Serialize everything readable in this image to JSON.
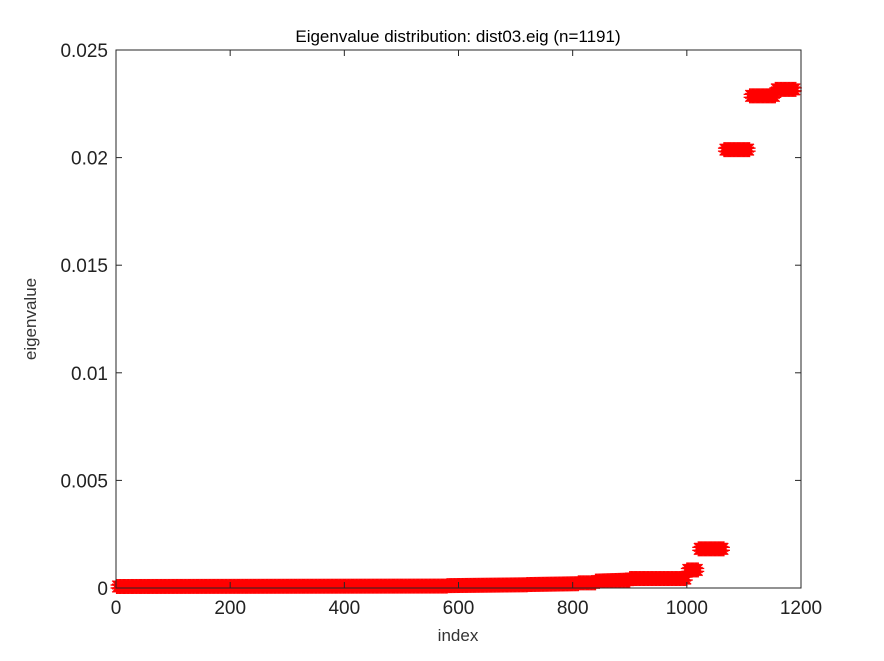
{
  "chart_data": {
    "type": "scatter",
    "title": "Eigenvalue distribution: dist03.eig (n=1191)",
    "xlabel": "index",
    "ylabel": "eigenvalue",
    "xlim": [
      0,
      1200
    ],
    "ylim": [
      0,
      0.025
    ],
    "xticks": [
      0,
      200,
      400,
      600,
      800,
      1000,
      1200
    ],
    "xtick_labels": [
      "0",
      "200",
      "400",
      "600",
      "800",
      "1000",
      "1200"
    ],
    "yticks": [
      0,
      0.005,
      0.01,
      0.015,
      0.02,
      0.025
    ],
    "ytick_labels": [
      "0",
      "0.005",
      "0.01",
      "0.015",
      "0.02",
      "0.025"
    ],
    "grid": false,
    "marker": "star",
    "marker_color": "#ff0000",
    "series": [
      {
        "segments": [
          {
            "x_start": 1,
            "x_end": 580,
            "y_start": 0.0,
            "y_end": 2e-05
          },
          {
            "x_start": 580,
            "x_end": 720,
            "y_start": 4e-05,
            "y_end": 8e-05
          },
          {
            "x_start": 720,
            "x_end": 810,
            "y_start": 9e-05,
            "y_end": 0.00013
          },
          {
            "x_start": 810,
            "x_end": 840,
            "y_start": 0.00017,
            "y_end": 0.00017
          },
          {
            "x_start": 840,
            "x_end": 900,
            "y_start": 0.00025,
            "y_end": 0.0003
          },
          {
            "x_start": 900,
            "x_end": 1000,
            "y_start": 0.00037,
            "y_end": 0.00037
          },
          {
            "x_start": 1000,
            "x_end": 1020,
            "y_start": 0.00077,
            "y_end": 0.00077
          },
          {
            "x_start": 1020,
            "x_end": 1065,
            "y_start": 0.00175,
            "y_end": 0.00175
          },
          {
            "x_start": 1065,
            "x_end": 1110,
            "y_start": 0.0203,
            "y_end": 0.0203
          },
          {
            "x_start": 1110,
            "x_end": 1155,
            "y_start": 0.0228,
            "y_end": 0.0228
          },
          {
            "x_start": 1155,
            "x_end": 1191,
            "y_start": 0.0231,
            "y_end": 0.0231
          }
        ]
      }
    ]
  }
}
